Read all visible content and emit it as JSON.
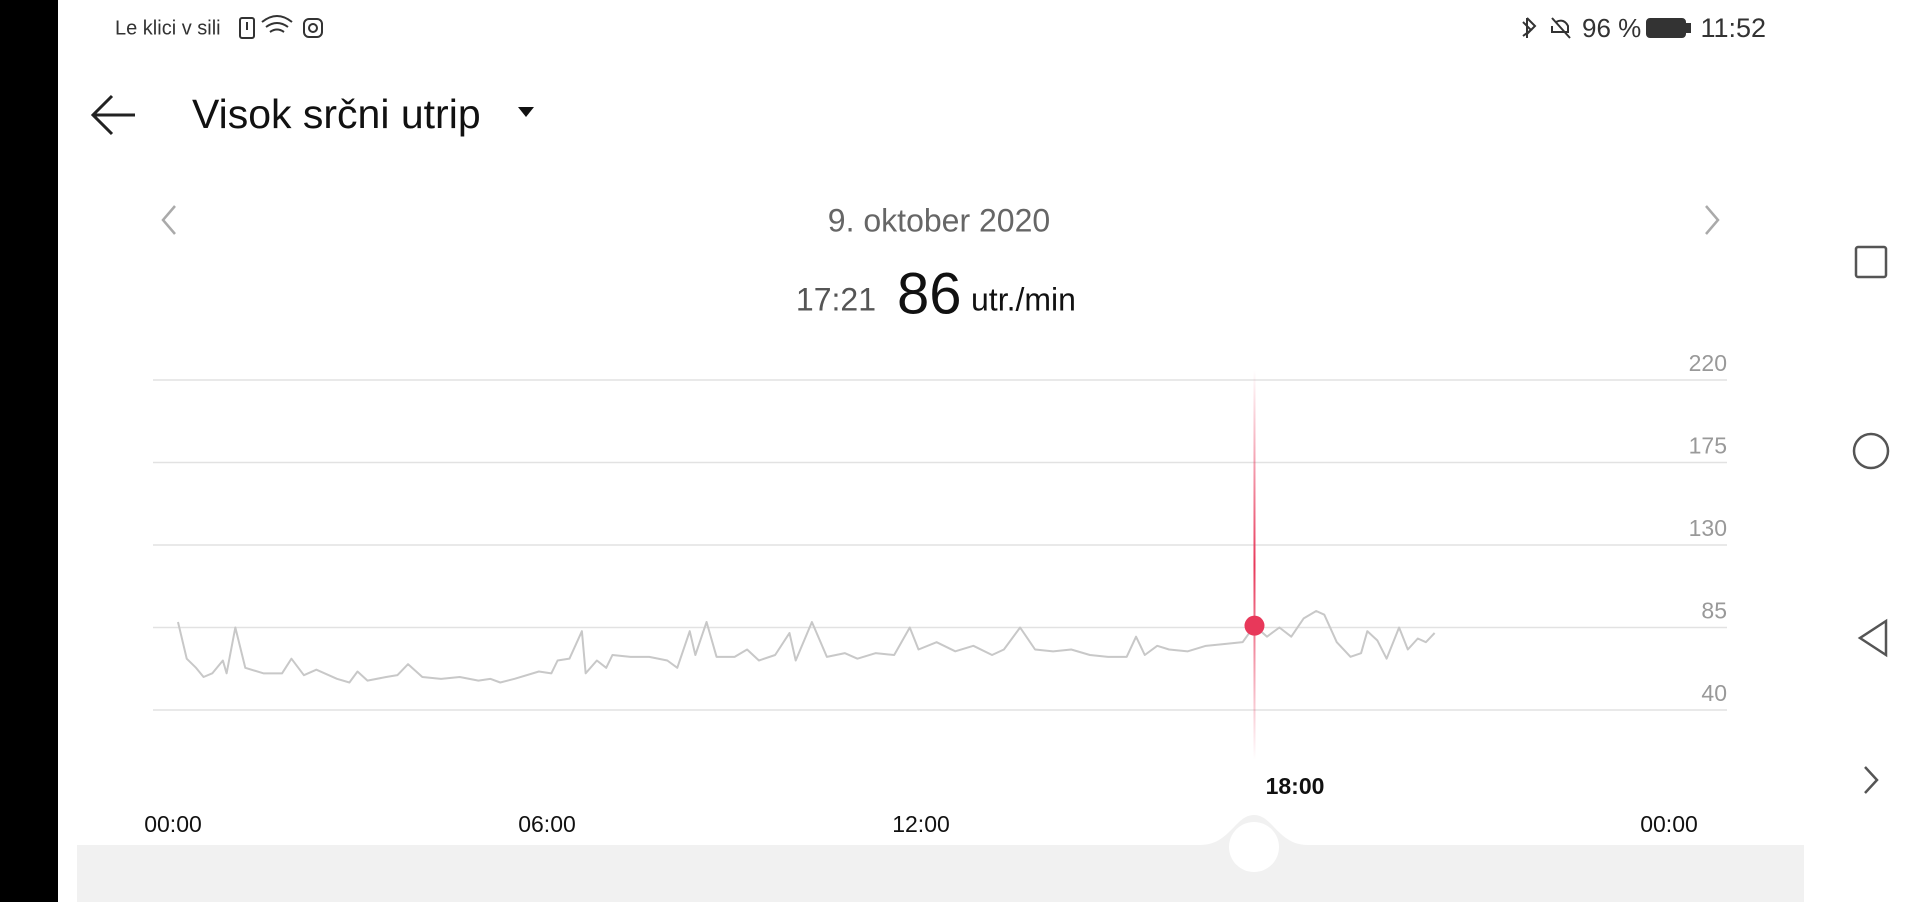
{
  "status_bar": {
    "carrier": "Le klici v sili",
    "battery": "96 %",
    "time": "11:52"
  },
  "header": {
    "title": "Visok srčni utrip"
  },
  "chart_data": {
    "type": "line",
    "date": "9. oktober 2020",
    "unit": "utr./min",
    "selected": {
      "time": "17:21",
      "x": 17.35,
      "value": 86
    },
    "x": [
      0.08,
      0.22,
      0.37,
      0.49,
      0.63,
      0.8,
      0.86,
      1.0,
      1.16,
      1.45,
      1.75,
      1.9,
      2.1,
      2.3,
      2.63,
      2.83,
      2.96,
      3.12,
      3.42,
      3.6,
      3.77,
      4.0,
      4.3,
      4.6,
      4.9,
      5.09,
      5.25,
      5.48,
      5.87,
      6.07,
      6.17,
      6.36,
      6.56,
      6.62,
      6.8,
      6.95,
      7.05,
      7.34,
      7.64,
      7.93,
      8.09,
      8.29,
      8.38,
      8.56,
      8.72,
      9.01,
      9.21,
      9.4,
      9.66,
      9.89,
      9.99,
      10.25,
      10.49,
      10.78,
      10.98,
      11.27,
      11.57,
      11.82,
      11.96,
      12.25,
      12.55,
      12.84,
      13.14,
      13.33,
      13.59,
      13.83,
      14.12,
      14.41,
      14.71,
      15.0,
      15.3,
      15.45,
      15.59,
      15.79,
      15.98,
      16.28,
      16.57,
      16.87,
      17.16,
      17.35,
      17.55,
      17.75,
      17.94,
      18.14,
      18.34,
      18.47,
      18.67,
      18.89,
      19.06,
      19.16,
      19.32,
      19.47,
      19.67,
      19.81,
      19.97,
      20.1,
      20.24
    ],
    "series": [
      {
        "color": "#c8c8c8",
        "values": [
          88,
          68,
          63,
          58,
          60,
          67,
          60,
          85,
          63,
          60,
          60,
          68,
          59,
          62,
          57,
          55,
          61,
          56,
          58,
          59,
          65,
          58,
          57,
          58,
          56,
          57,
          55,
          57,
          61,
          60,
          67,
          68,
          83,
          60,
          67,
          63,
          70,
          69,
          69,
          67,
          63,
          83,
          70,
          88,
          69,
          69,
          73,
          67,
          70,
          82,
          67,
          88,
          69,
          71,
          68,
          71,
          70,
          85,
          73,
          77,
          72,
          75,
          70,
          73,
          85,
          73,
          72,
          73,
          70,
          69,
          69,
          80,
          70,
          75,
          73,
          72,
          75,
          76,
          77,
          86,
          80,
          85,
          80,
          90,
          94,
          92,
          77,
          69,
          71,
          83,
          78,
          68,
          85,
          73,
          79,
          77,
          82
        ]
      }
    ],
    "xlim": [
      0,
      24
    ],
    "xticks": [
      {
        "value": 0,
        "label": "00:00"
      },
      {
        "value": 6,
        "label": "06:00"
      },
      {
        "value": 12,
        "label": "12:00"
      },
      {
        "value": 24,
        "label": "00:00"
      }
    ],
    "cursor_tick": {
      "value": 18,
      "label": "18:00"
    },
    "ylim": [
      40,
      220
    ],
    "yticks": [
      40,
      85,
      130,
      175,
      220
    ],
    "grid": true,
    "cursor_color": "#e8385a"
  }
}
